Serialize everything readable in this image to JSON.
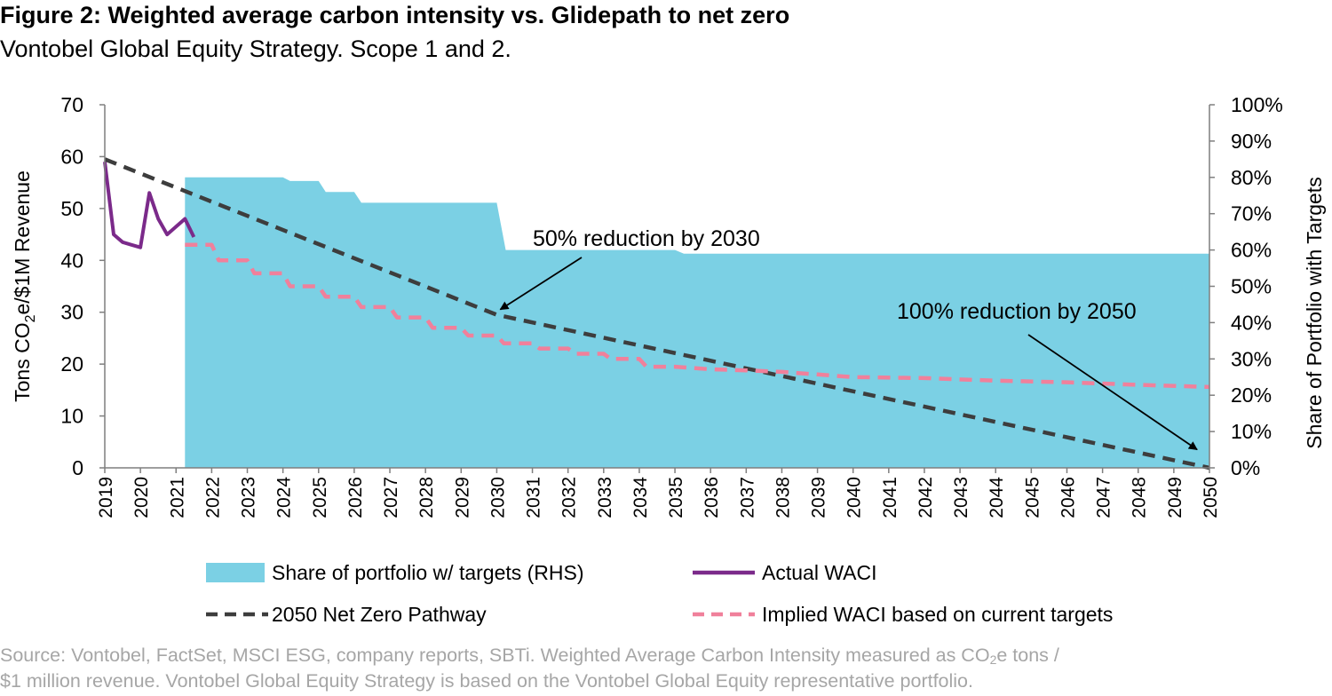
{
  "figure": {
    "title": "Figure 2: Weighted average carbon intensity vs. Glidepath to net zero",
    "subtitle": "Vontobel Global Equity Strategy. Scope 1 and 2."
  },
  "source": {
    "line1_pre": "Source: Vontobel, FactSet, MSCI ESG, company reports, SBTi. Weighted Average Carbon Intensity measured as CO",
    "line1_sub": "2",
    "line1_post": "e tons /",
    "line2": "$1 million revenue. Vontobel Global Equity Strategy is based on the Vontobel Global Equity representative portfolio."
  },
  "chart_data": {
    "type": "line",
    "x_type": "year",
    "xlim": [
      2019,
      2050
    ],
    "x_tick_labels": [
      "2019",
      "2020",
      "2021",
      "2022",
      "2023",
      "2024",
      "2025",
      "2026",
      "2027",
      "2028",
      "2029",
      "2030",
      "2031",
      "2032",
      "2033",
      "2034",
      "2035",
      "2036",
      "2037",
      "2038",
      "2039",
      "2040",
      "2041",
      "2042",
      "2043",
      "2044",
      "2045",
      "2046",
      "2047",
      "2048",
      "2049",
      "2050"
    ],
    "ylabel_left": {
      "pre": "Tons CO",
      "sub": "2",
      "post": "e/$1M Revenue"
    },
    "ylim_left": [
      0,
      70
    ],
    "y_ticks_left": [
      "0",
      "10",
      "20",
      "30",
      "40",
      "50",
      "60",
      "70"
    ],
    "ylabel_right": "Share of Portfolio with Targets",
    "ylim_right": [
      0,
      100
    ],
    "y_ticks_right": [
      "0%",
      "10%",
      "20%",
      "30%",
      "40%",
      "50%",
      "60%",
      "70%",
      "80%",
      "90%",
      "100%"
    ],
    "grid": false,
    "legend_position": "bottom",
    "series": [
      {
        "name": "Share of portfolio w/ targets (RHS)",
        "kind": "area",
        "axis": "right",
        "color": "#7bd0e4",
        "points": [
          [
            2021.25,
            80
          ],
          [
            2024.0,
            80
          ],
          [
            2024.2,
            79
          ],
          [
            2025.0,
            79
          ],
          [
            2025.2,
            76
          ],
          [
            2026.0,
            76
          ],
          [
            2026.2,
            73
          ],
          [
            2030.0,
            73
          ],
          [
            2030.25,
            60
          ],
          [
            2035.0,
            60
          ],
          [
            2035.25,
            59
          ],
          [
            2050.0,
            59
          ]
        ]
      },
      {
        "name": "Actual WACI",
        "kind": "line",
        "axis": "left",
        "color": "#7b2a8a",
        "points": [
          [
            2019.0,
            59
          ],
          [
            2019.25,
            45
          ],
          [
            2019.5,
            43.5
          ],
          [
            2019.75,
            43
          ],
          [
            2020.0,
            42.5
          ],
          [
            2020.25,
            53
          ],
          [
            2020.5,
            48
          ],
          [
            2020.75,
            45
          ],
          [
            2021.0,
            46.5
          ],
          [
            2021.25,
            48
          ],
          [
            2021.5,
            44.5
          ]
        ]
      },
      {
        "name": "2050 Net Zero Pathway",
        "kind": "dashed-line",
        "axis": "left",
        "color": "#3d3d3d",
        "points": [
          [
            2019,
            59.5
          ],
          [
            2030,
            29.5
          ],
          [
            2050,
            0
          ]
        ]
      },
      {
        "name": "Implied WACI based on current targets",
        "kind": "dashed-line",
        "axis": "left",
        "color": "#f0809b",
        "points": [
          [
            2021.25,
            43
          ],
          [
            2022.0,
            43
          ],
          [
            2022.2,
            40
          ],
          [
            2023.0,
            40
          ],
          [
            2023.2,
            37.5
          ],
          [
            2024.0,
            37.5
          ],
          [
            2024.2,
            35
          ],
          [
            2025.0,
            35
          ],
          [
            2025.2,
            33
          ],
          [
            2026.0,
            33
          ],
          [
            2026.2,
            31
          ],
          [
            2027.0,
            31
          ],
          [
            2027.2,
            29
          ],
          [
            2028.0,
            29
          ],
          [
            2028.2,
            27
          ],
          [
            2029.0,
            27
          ],
          [
            2029.2,
            25.5
          ],
          [
            2030.0,
            25.5
          ],
          [
            2030.2,
            24
          ],
          [
            2031.0,
            24
          ],
          [
            2031.2,
            23
          ],
          [
            2032.0,
            23
          ],
          [
            2032.2,
            22
          ],
          [
            2033.0,
            22
          ],
          [
            2033.2,
            21
          ],
          [
            2034.0,
            21
          ],
          [
            2034.2,
            19.5
          ],
          [
            2035.0,
            19.5
          ],
          [
            2036.0,
            19
          ],
          [
            2037.0,
            18.8
          ],
          [
            2038.0,
            18.5
          ],
          [
            2039.0,
            18
          ],
          [
            2040.0,
            17.5
          ],
          [
            2042.0,
            17.3
          ],
          [
            2044.0,
            16.8
          ],
          [
            2046.0,
            16.5
          ],
          [
            2048.0,
            16
          ],
          [
            2050.0,
            15.6
          ]
        ]
      }
    ],
    "annotations": [
      {
        "text": "50% reduction by 2030",
        "arrow_to": [
          2030,
          29.5
        ]
      },
      {
        "text": "100% reduction by 2050",
        "arrow_to": [
          2050,
          2.5
        ]
      }
    ]
  }
}
